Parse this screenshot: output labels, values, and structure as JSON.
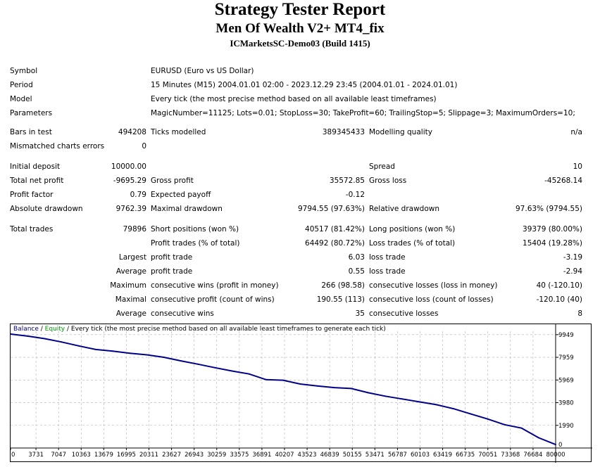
{
  "header": {
    "title": "Strategy Tester Report",
    "subtitle": "Men Of Wealth V2+ MT4_fix",
    "server": "ICMarketsSC-Demo03 (Build 1415)"
  },
  "info": {
    "symbol_label": "Symbol",
    "symbol_value": "EURUSD (Euro vs US Dollar)",
    "period_label": "Period",
    "period_value": "15 Minutes (M15) 2004.01.01 02:00 - 2023.12.29 23:45 (2004.01.01 - 2024.01.01)",
    "model_label": "Model",
    "model_value": "Every tick (the most precise method based on all available least timeframes)",
    "params_label": "Parameters",
    "params_value": "MagicNumber=11125; Lots=0.01; StopLoss=30; TakeProfit=60; TrailingStop=5; Slippage=3; MaximumOrders=10;"
  },
  "bars": {
    "bars_label": "Bars in test",
    "bars_value": "494208",
    "ticks_label": "Ticks modelled",
    "ticks_value": "389345433",
    "quality_label": "Modelling quality",
    "quality_value": "n/a",
    "mismatch_label": "Mismatched charts errors",
    "mismatch_value": "0"
  },
  "stats": {
    "initial_deposit_label": "Initial deposit",
    "initial_deposit_value": "10000.00",
    "spread_label": "Spread",
    "spread_value": "10",
    "net_profit_label": "Total net profit",
    "net_profit_value": "-9695.29",
    "gross_profit_label": "Gross profit",
    "gross_profit_value": "35572.85",
    "gross_loss_label": "Gross loss",
    "gross_loss_value": "-45268.14",
    "profit_factor_label": "Profit factor",
    "profit_factor_value": "0.79",
    "expected_payoff_label": "Expected payoff",
    "expected_payoff_value": "-0.12",
    "abs_drawdown_label": "Absolute drawdown",
    "abs_drawdown_value": "9762.39",
    "max_drawdown_label": "Maximal drawdown",
    "max_drawdown_value": "9794.55 (97.63%)",
    "rel_drawdown_label": "Relative drawdown",
    "rel_drawdown_value": "97.63% (9794.55)"
  },
  "trades": {
    "total_label": "Total trades",
    "total_value": "79896",
    "short_label": "Short positions (won %)",
    "short_value": "40517 (81.42%)",
    "long_label": "Long positions (won %)",
    "long_value": "39379 (80.00%)",
    "profit_trades_label": "Profit trades (% of total)",
    "profit_trades_value": "64492 (80.72%)",
    "loss_trades_label": "Loss trades (% of total)",
    "loss_trades_value": "15404 (19.28%)",
    "largest_label": "Largest",
    "largest_profit_label": "profit trade",
    "largest_profit_value": "6.03",
    "largest_loss_label": "loss trade",
    "largest_loss_value": "-3.19",
    "average_label": "Average",
    "average_profit_label": "profit trade",
    "average_profit_value": "0.55",
    "average_loss_label": "loss trade",
    "average_loss_value": "-2.94",
    "maximum_label": "Maximum",
    "max_wins_label": "consecutive wins (profit in money)",
    "max_wins_value": "266 (98.58)",
    "max_losses_label": "consecutive losses (loss in money)",
    "max_losses_value": "40 (-120.10)",
    "maximal_label": "Maximal",
    "maximal_profit_label": "consecutive profit (count of wins)",
    "maximal_profit_value": "190.55 (113)",
    "maximal_loss_label": "consecutive loss (count of losses)",
    "maximal_loss_value": "-120.10 (40)",
    "average2_label": "Average",
    "avg_wins_label": "consecutive wins",
    "avg_wins_value": "35",
    "avg_losses_label": "consecutive losses",
    "avg_losses_value": "8"
  },
  "legend": {
    "balance": "Balance",
    "sep1": " / ",
    "equity": "Equity",
    "sep2": " / ",
    "rest": "Every tick (the most precise method based on all available least timeframes to generate each tick)"
  },
  "colors": {
    "balance_line": "#00008b",
    "equity_label": "#009900",
    "grid": "#b0b0b0"
  },
  "chart_data": {
    "type": "line",
    "title": "",
    "xlabel": "",
    "ylabel": "",
    "x_ticks": [
      0,
      3731,
      7047,
      10363,
      13679,
      16995,
      20311,
      23627,
      26943,
      30259,
      33575,
      36891,
      40207,
      43523,
      46839,
      50155,
      53471,
      56787,
      60103,
      63419,
      66735,
      70051,
      73368,
      76684,
      80000
    ],
    "y_ticks": [
      0,
      1990,
      3980,
      5969,
      7959,
      9949
    ],
    "xlim": [
      0,
      80000
    ],
    "ylim": [
      0,
      10000
    ],
    "grid": true,
    "series": [
      {
        "name": "Balance",
        "x": [
          0,
          2500,
          5000,
          7500,
          10000,
          12500,
          15000,
          17500,
          20000,
          22500,
          25000,
          27500,
          30000,
          32500,
          35000,
          37500,
          40000,
          42500,
          45000,
          47500,
          50000,
          52500,
          55000,
          57500,
          60000,
          62500,
          65000,
          67500,
          70000,
          72500,
          75000,
          77500,
          80000
        ],
        "y": [
          10000,
          9820,
          9600,
          9300,
          8960,
          8650,
          8500,
          8320,
          8180,
          7960,
          7650,
          7360,
          7050,
          6760,
          6500,
          6000,
          5950,
          5620,
          5450,
          5300,
          5220,
          4850,
          4550,
          4300,
          4050,
          3800,
          3450,
          3000,
          2550,
          2050,
          1750,
          900,
          300
        ]
      }
    ]
  }
}
